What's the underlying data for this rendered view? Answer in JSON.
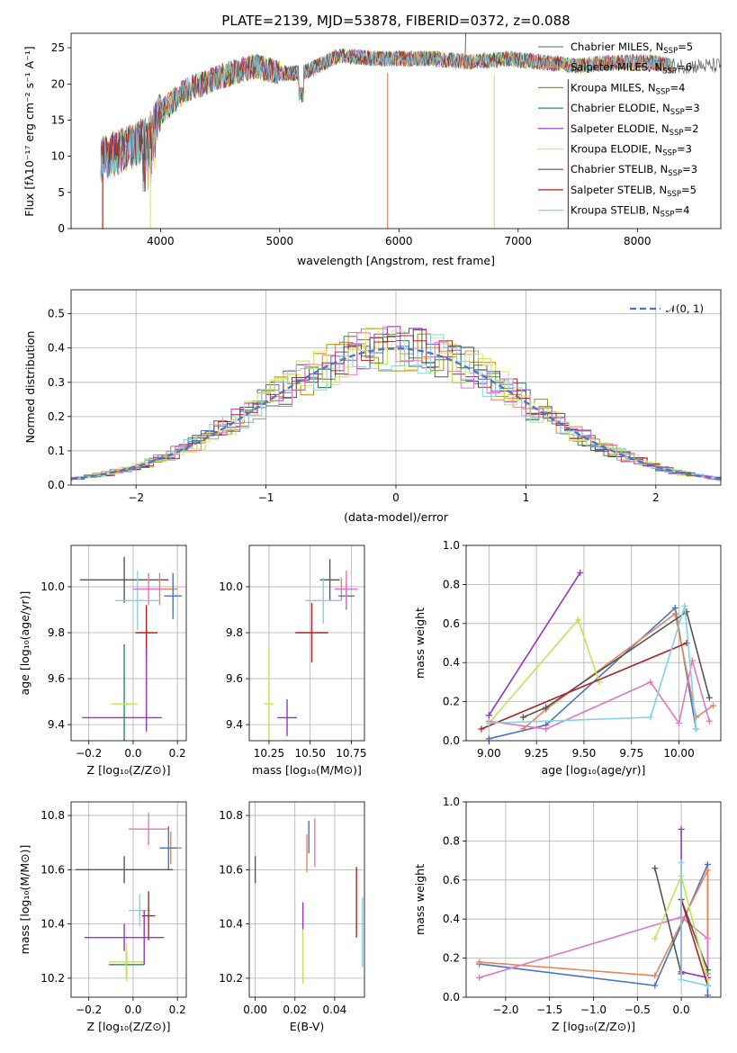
{
  "colors": {
    "chabrier_miles": "#4a74c9",
    "salpeter_miles": "#e6855a",
    "kroupa_miles": "#b8860b",
    "chabrier_elodie": "#2e8b57",
    "salpeter_elodie": "#9932cc",
    "kroupa_elodie": "#e5e55a",
    "chabrier_stelib": "#555555",
    "salpeter_stelib": "#b22222",
    "kroupa_stelib": "#7fd3e6",
    "normal": "#4a74c9",
    "pink": "#e377c2",
    "orange": "#e67e22",
    "lime": "#bfe55a"
  },
  "spectrum": {
    "title": "PLATE=2139, MJD=53878, FIBERID=0372, z=0.088",
    "xlabel": "wavelength [Angstrom, rest frame]",
    "ylabel": "Flux [fλ10⁻¹⁷ erg cm⁻² s⁻¹ A⁻¹]",
    "xticks": [
      "4000",
      "5000",
      "6000",
      "7000",
      "8000"
    ],
    "yticks": [
      "0",
      "5",
      "10",
      "15",
      "20",
      "25"
    ],
    "legend": [
      {
        "label": "Chabrier MILES, N",
        "sub": "SSP",
        "suffix": "=5",
        "color": "#7f7f7f"
      },
      {
        "label": "Salpeter MILES, N",
        "sub": "SSP",
        "suffix": "=6",
        "color": "#e6855a"
      },
      {
        "label": "Kroupa MILES, N",
        "sub": "SSP",
        "suffix": "=4",
        "color": "#b8860b"
      },
      {
        "label": "Chabrier ELODIE, N",
        "sub": "SSP",
        "suffix": "=3",
        "color": "#2e8b57"
      },
      {
        "label": "Salpeter ELODIE, N",
        "sub": "SSP",
        "suffix": "=2",
        "color": "#9932cc"
      },
      {
        "label": "Kroupa ELODIE, N",
        "sub": "SSP",
        "suffix": "=3",
        "color": "#e5e55a"
      },
      {
        "label": "Chabrier STELIB, N",
        "sub": "SSP",
        "suffix": "=3",
        "color": "#555555"
      },
      {
        "label": "Salpeter STELIB, N",
        "sub": "SSP",
        "suffix": "=5",
        "color": "#b22222"
      },
      {
        "label": "Kroupa STELIB, N",
        "sub": "SSP",
        "suffix": "=4",
        "color": "#7fd3e6"
      }
    ]
  },
  "residuals": {
    "xlabel": "(data-model)/error",
    "ylabel": "Normed distribution",
    "xticks": [
      "−2",
      "−1",
      "0",
      "1",
      "2"
    ],
    "yticks": [
      "0.0",
      "0.1",
      "0.2",
      "0.3",
      "0.4",
      "0.5"
    ],
    "legend": "𝒩(0, 1)"
  },
  "panels": {
    "age_vs_Z": {
      "xlabel": "Z [log₁₀(Z/Z⊙)]",
      "ylabel": "age  [log₁₀(age/yr)]",
      "xticks": [
        "−0.2",
        "0.0",
        "0.2"
      ],
      "yticks": [
        "9.4",
        "9.6",
        "9.8",
        "10.0"
      ]
    },
    "age_vs_mass": {
      "xlabel": "mass [log₁₀(M/M⊙)]",
      "xticks": [
        "10.25",
        "10.50",
        "10.75"
      ],
      "yticks": [
        "9.4",
        "9.6",
        "9.8",
        "10.0"
      ]
    },
    "weight_vs_age": {
      "xlabel": "age  [log₁₀(age/yr)]",
      "ylabel": "mass weight",
      "xticks": [
        "9.00",
        "9.25",
        "9.50",
        "9.75",
        "10.00"
      ],
      "yticks": [
        "0.0",
        "0.2",
        "0.4",
        "0.6",
        "0.8",
        "1.0"
      ]
    },
    "mass_vs_Z": {
      "xlabel": "Z [log₁₀(Z/Z⊙)]",
      "ylabel": "mass [log₁₀(M/M⊙)]",
      "xticks": [
        "−0.2",
        "0.0",
        "0.2"
      ],
      "yticks": [
        "10.2",
        "10.4",
        "10.6",
        "10.8"
      ]
    },
    "mass_vs_ebv": {
      "xlabel": "E(B-V)",
      "xticks": [
        "0.00",
        "0.02",
        "0.04"
      ],
      "yticks": [
        "10.2",
        "10.4",
        "10.6",
        "10.8"
      ]
    },
    "weight_vs_Z": {
      "xlabel": "Z [log₁₀(Z/Z⊙)]",
      "ylabel": "mass weight",
      "xticks": [
        "−2.0",
        "−1.5",
        "−1.0",
        "−0.5",
        "0.0"
      ],
      "yticks": [
        "0.0",
        "0.2",
        "0.4",
        "0.6",
        "0.8",
        "1.0"
      ]
    }
  },
  "chart_data": [
    {
      "type": "line",
      "title": "PLATE=2139, MJD=53878, FIBERID=0372, z=0.088",
      "xlabel": "wavelength [Angstrom, rest frame]",
      "ylabel": "Flux [fλ10⁻¹⁷ erg cm⁻² s⁻¹ A⁻¹]",
      "xlim": [
        3250,
        8700
      ],
      "ylim": [
        0,
        27
      ],
      "grid": false,
      "legend": "top-right",
      "x": [
        3500,
        3700,
        3900,
        4000,
        4200,
        4500,
        4800,
        5000,
        5200,
        5500,
        5800,
        6000,
        6300,
        6600,
        6900,
        7200,
        7500,
        7800,
        8100,
        8300
      ],
      "series": [
        {
          "values": [
            9.5,
            11.0,
            12.5,
            16.0,
            19.0,
            21.0,
            22.5,
            21.5,
            21.5,
            24.0,
            23.5,
            23.5,
            23.5,
            23.0,
            23.5,
            23.0,
            22.5,
            23.0,
            23.0,
            22.5
          ]
        }
      ]
    },
    {
      "type": "line",
      "xlabel": "(data-model)/error",
      "ylabel": "Normed distribution",
      "xlim": [
        -2.5,
        2.5
      ],
      "ylim": [
        0,
        0.57
      ],
      "grid": true,
      "legend": "top-right",
      "x": [
        -2.5,
        -2.0,
        -1.5,
        -1.0,
        -0.5,
        0.0,
        0.5,
        1.0,
        1.5,
        2.0,
        2.5
      ],
      "series": [
        {
          "name": "𝒩(0, 1)",
          "values": [
            0.018,
            0.054,
            0.13,
            0.242,
            0.352,
            0.399,
            0.352,
            0.242,
            0.13,
            0.054,
            0.018
          ]
        }
      ]
    },
    {
      "type": "scatter",
      "xlabel": "Z [log₁₀(Z/Z⊙)]",
      "ylabel": "age  [log₁₀(age/yr)]",
      "xlim": [
        -0.28,
        0.24
      ],
      "ylim": [
        9.33,
        10.18
      ],
      "points": [
        {
          "x": -0.04,
          "y": 10.03,
          "xerr": 0.2,
          "yerr": 0.1,
          "color": "#555555"
        },
        {
          "x": 0.12,
          "y": 9.99,
          "xerr": 0.08,
          "yerr": 0.07,
          "color": "#e6855a"
        },
        {
          "x": 0.18,
          "y": 9.96,
          "xerr": 0.04,
          "yerr": 0.1,
          "color": "#4a74c9"
        },
        {
          "x": 0.02,
          "y": 9.94,
          "xerr": 0.1,
          "yerr": 0.13,
          "color": "#7fd3e6"
        },
        {
          "x": 0.07,
          "y": 9.99,
          "xerr": 0.07,
          "yerr": 0.07,
          "color": "#e377c2"
        },
        {
          "x": 0.06,
          "y": 9.8,
          "xerr": 0.05,
          "yerr": 0.12,
          "color": "#b22222"
        },
        {
          "x": -0.04,
          "y": 9.5,
          "xerr": 0.0,
          "yerr": 0.25,
          "color": "#2e8b57"
        },
        {
          "x": -0.04,
          "y": 9.49,
          "xerr": 0.06,
          "yerr": 0.0,
          "color": "#bfe55a"
        },
        {
          "x": -0.05,
          "y": 9.43,
          "xerr": 0.18,
          "yerr": 0.0,
          "color": "#9932cc"
        },
        {
          "x": 0.06,
          "y": 9.55,
          "xerr": 0.0,
          "yerr": 0.18,
          "color": "#9932cc"
        }
      ]
    },
    {
      "type": "scatter",
      "xlabel": "mass [log₁₀(M/M⊙)]",
      "xlim": [
        10.13,
        10.83
      ],
      "ylim": [
        9.33,
        10.18
      ],
      "points": [
        {
          "x": 10.62,
          "y": 10.03,
          "xerr": 0.06,
          "yerr": 0.09,
          "color": "#555555"
        },
        {
          "x": 10.69,
          "y": 9.99,
          "xerr": 0.04,
          "yerr": 0.05,
          "color": "#e6855a"
        },
        {
          "x": 10.72,
          "y": 9.96,
          "xerr": 0.05,
          "yerr": 0.06,
          "color": "#4a74c9"
        },
        {
          "x": 10.58,
          "y": 9.94,
          "xerr": 0.11,
          "yerr": 0.1,
          "color": "#7fd3e6"
        },
        {
          "x": 10.72,
          "y": 9.99,
          "xerr": 0.07,
          "yerr": 0.08,
          "color": "#e377c2"
        },
        {
          "x": 10.51,
          "y": 9.8,
          "xerr": 0.1,
          "yerr": 0.13,
          "color": "#b22222"
        },
        {
          "x": 10.25,
          "y": 9.49,
          "xerr": 0.03,
          "yerr": 0.25,
          "color": "#bfe55a"
        },
        {
          "x": 10.36,
          "y": 9.43,
          "xerr": 0.06,
          "yerr": 0.08,
          "color": "#9932cc"
        }
      ]
    },
    {
      "type": "line",
      "xlabel": "age  [log₁₀(age/yr)]",
      "ylabel": "mass weight",
      "xlim": [
        8.88,
        10.22
      ],
      "ylim": [
        0,
        1.0
      ],
      "grid": true,
      "series": [
        {
          "color": "#4a74c9",
          "x": [
            9.0,
            9.3,
            9.98,
            10.09
          ],
          "values": [
            0.01,
            0.08,
            0.68,
            0.06
          ]
        },
        {
          "color": "#e6855a",
          "x": [
            9.18,
            9.3,
            9.98,
            10.09,
            10.18
          ],
          "values": [
            0.06,
            0.16,
            0.65,
            0.12,
            0.18
          ]
        },
        {
          "color": "#555555",
          "x": [
            9.18,
            9.3,
            10.04,
            10.16
          ],
          "values": [
            0.12,
            0.17,
            0.66,
            0.22
          ]
        },
        {
          "color": "#9932cc",
          "x": [
            9.0,
            9.48
          ],
          "values": [
            0.13,
            0.86
          ]
        },
        {
          "color": "#bfe55a",
          "x": [
            9.0,
            9.47,
            9.58
          ],
          "values": [
            0.09,
            0.62,
            0.3
          ]
        },
        {
          "color": "#b22222",
          "x": [
            8.96,
            10.04
          ],
          "values": [
            0.06,
            0.5
          ]
        },
        {
          "color": "#e377c2",
          "x": [
            9.0,
            9.3,
            9.85,
            10.0,
            10.07,
            10.16
          ],
          "values": [
            0.1,
            0.06,
            0.3,
            0.09,
            0.41,
            0.1
          ]
        },
        {
          "color": "#7fd3e6",
          "x": [
            9.0,
            9.85,
            10.03,
            10.09
          ],
          "values": [
            0.09,
            0.12,
            0.69,
            0.06
          ]
        }
      ]
    },
    {
      "type": "scatter",
      "xlabel": "Z [log₁₀(Z/Z⊙)]",
      "ylabel": "mass [log₁₀(M/M⊙)]",
      "xlim": [
        -0.28,
        0.24
      ],
      "ylim": [
        10.13,
        10.85
      ],
      "points": [
        {
          "x": -0.04,
          "y": 10.6,
          "xerr": 0.22,
          "yerr": 0.05,
          "color": "#555555"
        },
        {
          "x": 0.17,
          "y": 10.68,
          "xerr": 0.05,
          "yerr": 0.06,
          "color": "#e6855a"
        },
        {
          "x": 0.16,
          "y": 10.68,
          "xerr": 0.04,
          "yerr": 0.08,
          "color": "#4a74c9"
        },
        {
          "x": 0.07,
          "y": 10.75,
          "xerr": 0.09,
          "yerr": 0.06,
          "color": "#e377c2"
        },
        {
          "x": 0.03,
          "y": 10.45,
          "xerr": 0.05,
          "yerr": 0.06,
          "color": "#7fd3e6"
        },
        {
          "x": 0.07,
          "y": 10.43,
          "xerr": 0.03,
          "yerr": 0.09,
          "color": "#b22222"
        },
        {
          "x": -0.03,
          "y": 10.25,
          "xerr": 0.08,
          "yerr": 0.05,
          "color": "#2e8b57"
        },
        {
          "x": -0.03,
          "y": 10.26,
          "xerr": 0.08,
          "yerr": 0.07,
          "color": "#bfe55a"
        },
        {
          "x": -0.04,
          "y": 10.35,
          "xerr": 0.18,
          "yerr": 0.05,
          "color": "#9932cc"
        },
        {
          "x": 0.05,
          "y": 10.35,
          "xerr": 0.0,
          "yerr": 0.1,
          "color": "#9932cc"
        }
      ]
    },
    {
      "type": "scatter",
      "xlabel": "E(B-V)",
      "xlim": [
        -0.003,
        0.055
      ],
      "ylim": [
        10.13,
        10.85
      ],
      "points": [
        {
          "x": 0.0,
          "y": 10.6,
          "xerr": 0.0,
          "yerr": 0.05,
          "color": "#555555"
        },
        {
          "x": 0.027,
          "y": 10.72,
          "xerr": 0.0,
          "yerr": 0.06,
          "color": "#4a74c9"
        },
        {
          "x": 0.026,
          "y": 10.66,
          "xerr": 0.0,
          "yerr": 0.07,
          "color": "#e6855a"
        },
        {
          "x": 0.03,
          "y": 10.7,
          "xerr": 0.0,
          "yerr": 0.09,
          "color": "#e377c2"
        },
        {
          "x": 0.024,
          "y": 10.43,
          "xerr": 0.0,
          "yerr": 0.05,
          "color": "#9932cc"
        },
        {
          "x": 0.024,
          "y": 10.28,
          "xerr": 0.0,
          "yerr": 0.1,
          "color": "#bfe55a"
        },
        {
          "x": 0.051,
          "y": 10.48,
          "xerr": 0.0,
          "yerr": 0.13,
          "color": "#b22222"
        },
        {
          "x": 0.054,
          "y": 10.37,
          "xerr": 0.0,
          "yerr": 0.13,
          "color": "#7fd3e6"
        }
      ]
    },
    {
      "type": "line",
      "xlabel": "Z [log₁₀(Z/Z⊙)]",
      "ylabel": "mass weight",
      "xlim": [
        -2.45,
        0.45
      ],
      "ylim": [
        0,
        1.0
      ],
      "grid": true,
      "series": [
        {
          "color": "#4a74c9",
          "x": [
            -2.3,
            -0.3,
            0.3,
            0.3
          ],
          "values": [
            0.17,
            0.06,
            0.68,
            0.01
          ]
        },
        {
          "color": "#e6855a",
          "x": [
            -2.3,
            -0.3,
            0.3,
            0.3
          ],
          "values": [
            0.18,
            0.11,
            0.65,
            0.12
          ]
        },
        {
          "color": "#e377c2",
          "x": [
            -2.3,
            0.0,
            0.3,
            0.3
          ],
          "values": [
            0.1,
            0.41,
            0.3,
            0.06
          ]
        },
        {
          "color": "#555555",
          "x": [
            -0.3,
            0.0,
            0.0,
            0.3
          ],
          "values": [
            0.66,
            0.12,
            0.5,
            0.14
          ]
        },
        {
          "color": "#9932cc",
          "x": [
            0.0,
            0.0,
            0.3
          ],
          "values": [
            0.86,
            0.13,
            0.1
          ]
        },
        {
          "color": "#bfe55a",
          "x": [
            -0.3,
            0.0,
            0.3
          ],
          "values": [
            0.3,
            0.62,
            0.09
          ]
        },
        {
          "color": "#b22222",
          "x": [
            0.0,
            0.3
          ],
          "values": [
            0.5,
            0.06
          ]
        },
        {
          "color": "#7fd3e6",
          "x": [
            0.0,
            0.0,
            0.3
          ],
          "values": [
            0.69,
            0.09,
            0.06
          ]
        }
      ]
    }
  ]
}
